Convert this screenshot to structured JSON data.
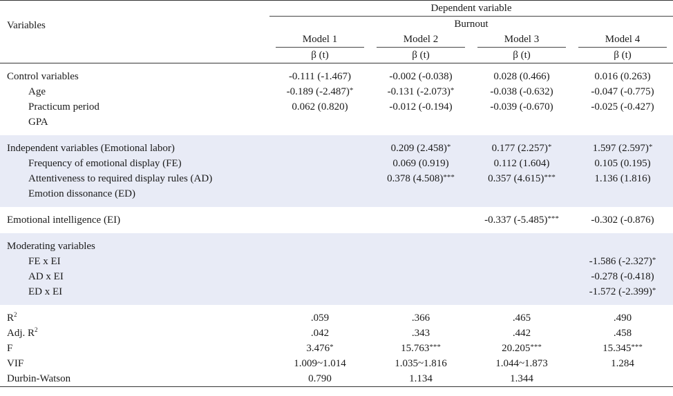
{
  "header": {
    "variables_label": "Variables",
    "dependent_variable": "Dependent variable",
    "burnout": "Burnout",
    "models": [
      "Model 1",
      "Model 2",
      "Model 3",
      "Model 4"
    ],
    "beta_label": "β (t)"
  },
  "sections": {
    "control": {
      "rows": [
        {
          "label": "Control variables",
          "m1": "-0.111 (-1.467)",
          "m2": "-0.002 (-0.038)",
          "m3": "0.028 (0.466)",
          "m4": "0.016 (0.263)"
        },
        {
          "label": "Age",
          "m1": "-0.189 (-2.487)*",
          "m2": "-0.131 (-2.073)*",
          "m3": "-0.038 (-0.632)",
          "m4": "-0.047 (-0.775)"
        },
        {
          "label": "Practicum period",
          "m1": "0.062 (0.820)",
          "m2": "-0.012 (-0.194)",
          "m3": "-0.039 (-0.670)",
          "m4": "-0.025 (-0.427)"
        },
        {
          "label": "GPA",
          "m1": "",
          "m2": "",
          "m3": "",
          "m4": ""
        }
      ]
    },
    "independent": {
      "rows": [
        {
          "label": "Independent variables (Emotional labor)",
          "m1": "",
          "m2": "0.209 (2.458)*",
          "m3": "0.177 (2.257)*",
          "m4": "1.597 (2.597)*"
        },
        {
          "label": "Frequency of emotional display (FE)",
          "m1": "",
          "m2": "0.069 (0.919)",
          "m3": "0.112 (1.604)",
          "m4": "0.105 (0.195)"
        },
        {
          "label": "Attentiveness to required display rules (AD)",
          "m1": "",
          "m2": "0.378 (4.508)***",
          "m3": "0.357 (4.615)***",
          "m4": "1.136 (1.816)"
        },
        {
          "label": "Emotion dissonance (ED)",
          "m1": "",
          "m2": "",
          "m3": "",
          "m4": ""
        }
      ]
    },
    "ei": {
      "rows": [
        {
          "label": "Emotional intelligence (EI)",
          "m1": "",
          "m2": "",
          "m3": "-0.337 (-5.485)***",
          "m4": "-0.302 (-0.876)"
        }
      ]
    },
    "moderating": {
      "rows": [
        {
          "label": "Moderating variables",
          "m1": "",
          "m2": "",
          "m3": "",
          "m4": ""
        },
        {
          "label": "FE x EI",
          "m1": "",
          "m2": "",
          "m3": "",
          "m4": "-1.586 (-2.327)*"
        },
        {
          "label": "AD x EI",
          "m1": "",
          "m2": "",
          "m3": "",
          "m4": "-0.278 (-0.418)"
        },
        {
          "label": "ED x EI",
          "m1": "",
          "m2": "",
          "m3": "",
          "m4": "-1.572 (-2.399)*"
        }
      ]
    },
    "stats": {
      "rows": [
        {
          "label": "R",
          "sup": "2",
          "m1": ".059",
          "m2": ".366",
          "m3": ".465",
          "m4": ".490"
        },
        {
          "label": "Adj. R",
          "sup": "2",
          "m1": ".042",
          "m2": ".343",
          "m3": ".442",
          "m4": ".458"
        },
        {
          "label": "F",
          "m1": "3.476*",
          "m2": "15.763***",
          "m3": "20.205***",
          "m4": "15.345***"
        },
        {
          "label": "VIF",
          "m1": "1.009~1.014",
          "m2": "1.035~1.816",
          "m3": "1.044~1.873",
          "m4": "1.284"
        },
        {
          "label": "Durbin-Watson",
          "m1": "0.790",
          "m2": "1.134",
          "m3": "1.344",
          "m4": ""
        }
      ]
    }
  }
}
